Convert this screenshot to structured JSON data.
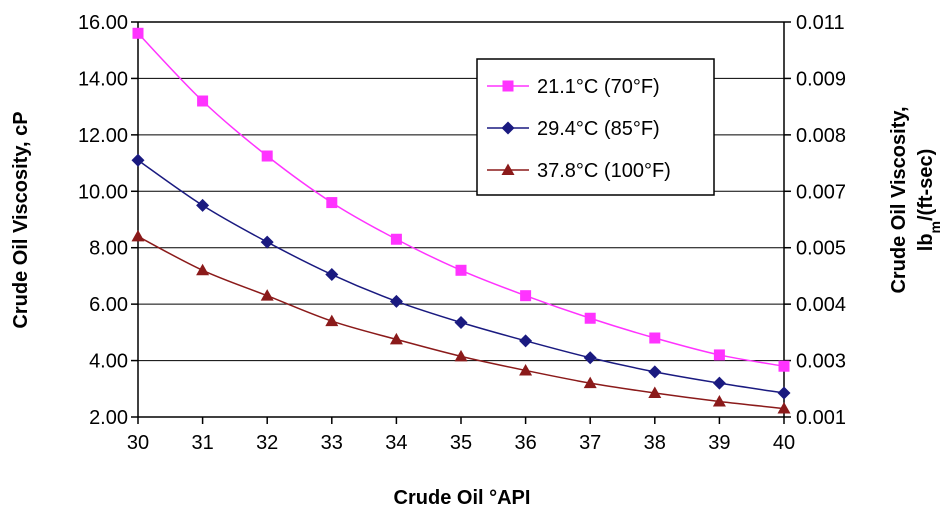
{
  "chart_data": {
    "type": "line",
    "title": "",
    "xlabel": "Crude Oil °API",
    "ylabel": "Crude Oil Viscosity, cP",
    "y2label_line1": "Crude Oil Viscosity,",
    "y2label_line2_main": "lb",
    "y2label_line2_sub": "m",
    "y2label_line2_rest": "/(ft-sec)",
    "x": [
      30,
      31,
      32,
      33,
      34,
      35,
      36,
      37,
      38,
      39,
      40
    ],
    "xlim": [
      30,
      40
    ],
    "ylim": [
      2,
      16
    ],
    "yticks": [
      "16.00",
      "14.00",
      "12.00",
      "10.00",
      "8.00",
      "6.00",
      "4.00",
      "2.00"
    ],
    "y2ticks": [
      "0.011",
      "0.009",
      "0.008",
      "0.007",
      "0.005",
      "0.004",
      "0.003",
      "0.001"
    ],
    "xticks": [
      "30",
      "31",
      "32",
      "33",
      "34",
      "35",
      "36",
      "37",
      "38",
      "39",
      "40"
    ],
    "grid": "horizontal",
    "legend_position": "top-right",
    "series": [
      {
        "name": "21.1°C (70°F)",
        "marker": "square",
        "color": "#ff33ff",
        "values": [
          15.6,
          13.2,
          11.25,
          9.6,
          8.3,
          7.2,
          6.3,
          5.5,
          4.8,
          4.2,
          3.8
        ]
      },
      {
        "name": "29.4°C (85°F)",
        "marker": "diamond",
        "color": "#1a1a80",
        "values": [
          11.1,
          9.5,
          8.2,
          7.05,
          6.1,
          5.35,
          4.7,
          4.1,
          3.6,
          3.2,
          2.85
        ]
      },
      {
        "name": "37.8°C (100°F)",
        "marker": "triangle",
        "color": "#8b1a1a",
        "values": [
          8.4,
          7.2,
          6.3,
          5.4,
          4.75,
          4.15,
          3.65,
          3.2,
          2.85,
          2.55,
          2.3
        ]
      }
    ]
  }
}
